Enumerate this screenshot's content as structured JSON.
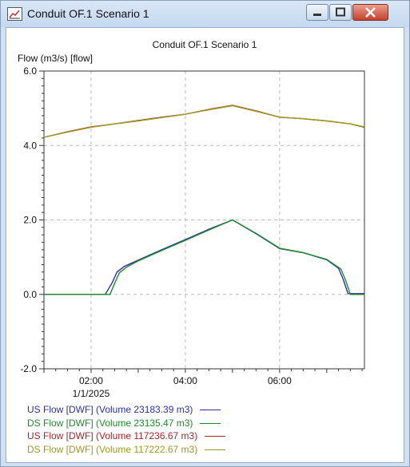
{
  "window": {
    "title": "Conduit OF.1 Scenario 1",
    "controls": [
      "minimize",
      "maximize",
      "close"
    ],
    "close_color": "#c8402c"
  },
  "chart_data": {
    "type": "line",
    "title": "Conduit OF.1 Scenario 1",
    "ylabel": "Flow (m3/s) [flow]",
    "xlabel": "",
    "ylim": [
      -2.0,
      6.0
    ],
    "yticks": [
      "6.0",
      "4.0",
      "2.0",
      "0.0",
      "-2.0"
    ],
    "ytick_values": [
      6.0,
      4.0,
      2.0,
      0.0,
      -2.0
    ],
    "xlim_hours": [
      1.0,
      7.8
    ],
    "xtick_hours": [
      2,
      4,
      6
    ],
    "xticks": [
      "02:00",
      "04:00",
      "06:00"
    ],
    "xdate_label": "1/1/2025",
    "grid": true,
    "legend_placement": "bottom-left",
    "series": [
      {
        "name": "US Flow [DWF] (Volume 23183.39 m3)",
        "color": "#2b2fa0",
        "x": [
          1.0,
          2.3,
          2.45,
          2.55,
          2.7,
          3.0,
          3.5,
          4.0,
          4.5,
          5.0,
          5.5,
          6.0,
          6.5,
          7.0,
          7.25,
          7.35,
          7.45,
          7.8
        ],
        "y": [
          0.0,
          0.0,
          0.32,
          0.6,
          0.75,
          0.92,
          1.2,
          1.47,
          1.75,
          2.0,
          1.63,
          1.23,
          1.12,
          0.93,
          0.7,
          0.4,
          0.02,
          0.02
        ]
      },
      {
        "name": "DS Flow [DWF] (Volume 23135.47 m3)",
        "color": "#1d8a2a",
        "x": [
          1.0,
          2.4,
          2.5,
          2.6,
          2.75,
          3.0,
          3.5,
          4.0,
          4.5,
          5.0,
          5.5,
          6.0,
          6.5,
          7.0,
          7.3,
          7.4,
          7.5,
          7.8
        ],
        "y": [
          0.0,
          0.0,
          0.3,
          0.58,
          0.73,
          0.9,
          1.18,
          1.45,
          1.73,
          2.0,
          1.64,
          1.24,
          1.12,
          0.94,
          0.68,
          0.38,
          0.0,
          0.0
        ]
      },
      {
        "name": "US Flow [DWF] (Volume 117236.67 m3)",
        "color": "#a0272a",
        "x": [
          1.0,
          1.5,
          2.0,
          2.5,
          3.0,
          3.5,
          4.0,
          4.5,
          5.0,
          5.5,
          6.0,
          6.5,
          7.0,
          7.5,
          7.8
        ],
        "y": [
          4.22,
          4.37,
          4.5,
          4.58,
          4.67,
          4.76,
          4.84,
          4.97,
          5.08,
          4.93,
          4.76,
          4.72,
          4.66,
          4.58,
          4.49
        ]
      },
      {
        "name": "DS Flow [DWF] (Volume 117222.67 m3)",
        "color": "#9a9a1e",
        "x": [
          1.0,
          1.5,
          2.0,
          2.5,
          3.0,
          3.5,
          4.0,
          4.5,
          5.0,
          5.5,
          6.0,
          6.5,
          7.0,
          7.5,
          7.8
        ],
        "y": [
          4.22,
          4.36,
          4.49,
          4.58,
          4.66,
          4.75,
          4.84,
          4.96,
          5.07,
          4.92,
          4.76,
          4.72,
          4.66,
          4.58,
          4.5
        ]
      }
    ]
  }
}
